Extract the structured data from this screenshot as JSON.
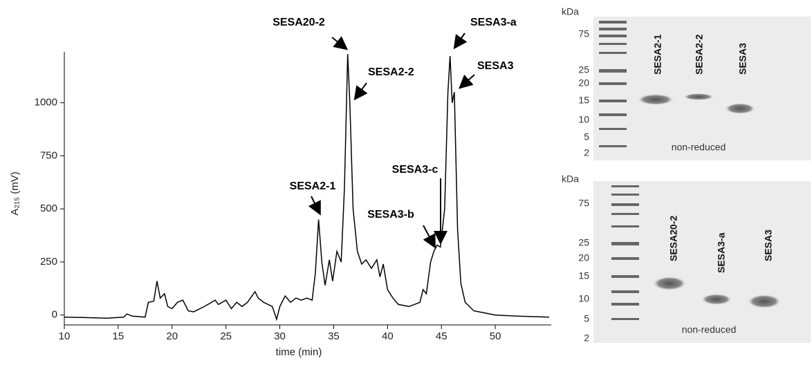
{
  "chart_data": {
    "type": "line",
    "x_label": "time (min)",
    "y_label": "A₂₁₅ (mV)",
    "color": "#000000",
    "xlim": [
      10,
      55
    ],
    "ylim": [
      -40,
      1240
    ],
    "xticks": [
      10,
      15,
      20,
      25,
      30,
      35,
      40,
      45,
      50
    ],
    "yticks": [
      0,
      250,
      500,
      750,
      1000
    ],
    "x": [
      10,
      12,
      14,
      15.5,
      15.8,
      16.3,
      17.5,
      17.8,
      18.3,
      18.6,
      18.9,
      19.3,
      19.6,
      20,
      20.5,
      21,
      21.5,
      22,
      23,
      24,
      24.3,
      25,
      25.5,
      26,
      26.5,
      27,
      27.7,
      28,
      28.5,
      29.3,
      29.7,
      30,
      30.5,
      31,
      31.5,
      32,
      32.5,
      33,
      33.3,
      33.6,
      33.9,
      34.2,
      34.6,
      34.9,
      35.3,
      35.7,
      36.0,
      36.3,
      36.5,
      36.8,
      37.2,
      37.6,
      38,
      38.5,
      39,
      39.3,
      39.6,
      40,
      40.5,
      41,
      42,
      43,
      43.3,
      43.6,
      44,
      44.3,
      44.6,
      44.9,
      45.3,
      45.6,
      45.8,
      46.0,
      46.2,
      46.5,
      46.8,
      47.2,
      48,
      49,
      50,
      52,
      55
    ],
    "y": [
      -10,
      -12,
      -15,
      -10,
      5,
      -5,
      -10,
      60,
      65,
      160,
      80,
      100,
      40,
      30,
      60,
      70,
      20,
      15,
      40,
      70,
      50,
      70,
      30,
      60,
      40,
      60,
      110,
      80,
      60,
      40,
      -20,
      40,
      90,
      60,
      80,
      70,
      80,
      70,
      200,
      450,
      250,
      140,
      260,
      160,
      300,
      250,
      600,
      1230,
      1000,
      500,
      300,
      240,
      260,
      220,
      260,
      180,
      240,
      120,
      80,
      50,
      40,
      60,
      120,
      100,
      250,
      300,
      330,
      320,
      500,
      1050,
      1220,
      1000,
      1050,
      400,
      150,
      60,
      20,
      10,
      0,
      -5,
      -10
    ],
    "annotations": [
      "SESA20-2",
      "SESA2-2",
      "SESA2-1",
      "SESA3-c",
      "SESA3-b",
      "SESA3-a",
      "SESA3"
    ]
  },
  "gels": [
    {
      "unit": "kDa",
      "ladder": [
        75,
        25,
        20,
        15,
        10,
        5,
        2
      ],
      "lanes": [
        "SESA2-1",
        "SESA2-2",
        "SESA3"
      ],
      "note": "non-reduced"
    },
    {
      "unit": "kDa",
      "ladder": [
        75,
        25,
        20,
        15,
        10,
        5,
        2
      ],
      "lanes": [
        "SESA20-2",
        "SESA3-a",
        "SESA3"
      ],
      "note": "non-reduced"
    }
  ]
}
